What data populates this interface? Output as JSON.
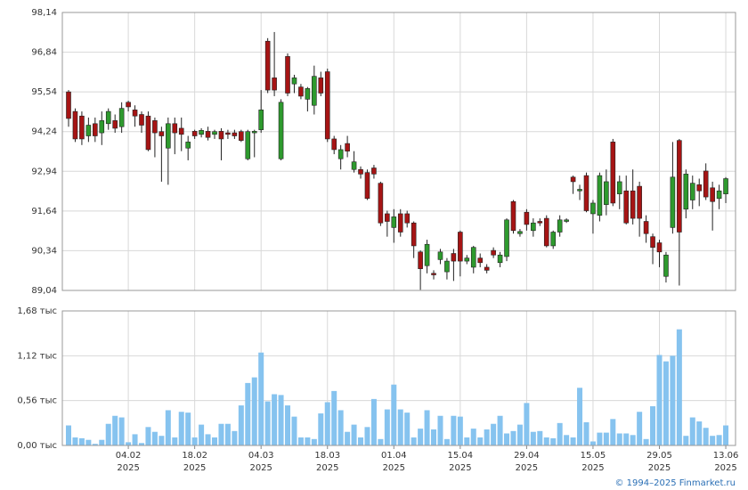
{
  "chart_data": [
    {
      "type": "candlestick",
      "ylim": [
        89.04,
        98.14
      ],
      "yticks": [
        {
          "value": 89.04,
          "label": "89,04"
        },
        {
          "value": 90.34,
          "label": "90,34"
        },
        {
          "value": 91.64,
          "label": "91,64"
        },
        {
          "value": 92.94,
          "label": "92,94"
        },
        {
          "value": 94.24,
          "label": "94,24"
        },
        {
          "value": 95.54,
          "label": "95,54"
        },
        {
          "value": 96.84,
          "label": "96,84"
        },
        {
          "value": 98.14,
          "label": "98,14"
        }
      ],
      "grid": true,
      "up_color": "#2e9a2e",
      "down_color": "#a61414",
      "open": [
        95.54,
        94.9,
        94.75,
        94.1,
        94.5,
        94.2,
        94.5,
        94.6,
        94.4,
        95.2,
        94.95,
        94.8,
        94.75,
        94.6,
        94.24,
        93.7,
        94.5,
        94.35,
        93.7,
        94.25,
        94.15,
        94.25,
        94.15,
        94.25,
        94.2,
        94.2,
        94.24,
        93.35,
        94.2,
        94.3,
        97.2,
        96.0,
        93.35,
        96.7,
        95.8,
        95.7,
        95.3,
        95.1,
        96.0,
        96.2,
        94.0,
        93.35,
        93.85,
        93.0,
        93.0,
        92.9,
        93.05,
        92.55,
        91.55,
        91.1,
        91.55,
        91.55,
        91.25,
        90.3,
        89.85,
        89.6,
        90.05,
        89.65,
        90.25,
        90.95,
        90.0,
        89.8,
        90.1,
        89.8,
        90.35,
        89.95,
        90.15,
        91.95,
        90.9,
        91.6,
        91.0,
        91.3,
        91.4,
        90.5,
        90.95,
        91.3,
        92.75,
        92.3,
        92.8,
        91.55,
        91.5,
        91.85,
        93.9,
        92.2,
        92.3,
        92.3,
        92.45,
        91.3,
        90.8,
        90.6,
        89.5,
        91.1,
        93.95,
        91.7,
        92.0,
        92.5,
        92.95,
        92.4,
        92.05,
        92.2
      ],
      "high": [
        95.6,
        95.0,
        94.9,
        94.7,
        94.7,
        94.9,
        95.0,
        94.8,
        95.2,
        95.25,
        95.1,
        94.9,
        94.9,
        94.7,
        94.4,
        94.7,
        94.7,
        94.7,
        94.1,
        94.3,
        94.35,
        94.4,
        94.3,
        94.35,
        94.3,
        94.3,
        94.3,
        94.3,
        94.3,
        95.6,
        97.3,
        97.5,
        95.3,
        96.8,
        96.1,
        95.8,
        95.7,
        96.4,
        96.2,
        96.3,
        94.1,
        93.8,
        94.1,
        93.6,
        93.1,
        93.0,
        93.15,
        92.6,
        91.65,
        91.7,
        91.7,
        91.65,
        91.3,
        90.35,
        90.7,
        89.7,
        90.4,
        90.1,
        90.4,
        91.0,
        90.2,
        90.5,
        90.25,
        89.9,
        90.45,
        90.3,
        91.4,
        92.0,
        91.05,
        91.7,
        91.4,
        91.4,
        91.5,
        91.0,
        91.5,
        91.4,
        92.8,
        92.5,
        92.9,
        92.0,
        92.9,
        93.0,
        94.0,
        92.8,
        92.8,
        93.0,
        92.6,
        91.5,
        90.9,
        90.7,
        90.3,
        93.9,
        94.0,
        93.0,
        92.8,
        92.7,
        93.2,
        92.6,
        92.5,
        92.75
      ],
      "low": [
        94.4,
        93.9,
        93.8,
        93.9,
        93.9,
        93.8,
        94.3,
        94.2,
        94.2,
        94.9,
        94.4,
        94.2,
        93.6,
        93.4,
        92.6,
        92.5,
        93.5,
        93.6,
        93.3,
        94.0,
        94.05,
        93.95,
        94.0,
        93.3,
        94.0,
        94.0,
        93.9,
        93.3,
        93.4,
        94.2,
        95.5,
        95.4,
        93.3,
        95.4,
        95.5,
        95.3,
        94.9,
        94.8,
        95.4,
        93.9,
        93.5,
        93.0,
        93.4,
        92.9,
        92.7,
        92.0,
        92.7,
        91.15,
        90.8,
        90.6,
        90.8,
        91.1,
        90.1,
        89.06,
        89.6,
        89.4,
        89.9,
        89.4,
        89.35,
        89.5,
        89.9,
        89.6,
        89.8,
        89.6,
        90.1,
        89.8,
        90.0,
        90.9,
        90.8,
        91.0,
        90.8,
        91.15,
        90.45,
        90.4,
        90.8,
        91.25,
        92.2,
        92.0,
        91.6,
        90.9,
        91.3,
        91.5,
        91.8,
        91.7,
        91.2,
        91.2,
        90.8,
        90.6,
        89.9,
        89.8,
        89.3,
        90.9,
        89.2,
        91.4,
        91.7,
        91.8,
        92.0,
        91.0,
        91.7,
        91.9
      ],
      "close": [
        94.67,
        94.0,
        94.0,
        94.45,
        94.1,
        94.6,
        94.9,
        94.35,
        95.0,
        95.05,
        94.75,
        94.45,
        93.65,
        94.2,
        94.1,
        94.5,
        94.2,
        94.15,
        93.9,
        94.1,
        94.28,
        94.05,
        94.24,
        94.0,
        94.15,
        94.1,
        93.95,
        94.24,
        94.25,
        94.95,
        95.6,
        95.6,
        95.2,
        95.5,
        96.0,
        95.4,
        95.65,
        96.05,
        95.5,
        94.0,
        93.65,
        93.65,
        93.6,
        93.25,
        92.85,
        92.05,
        92.85,
        91.25,
        91.3,
        91.45,
        90.95,
        91.25,
        90.5,
        89.75,
        90.55,
        89.55,
        90.3,
        90.0,
        90.0,
        90.0,
        90.1,
        90.45,
        89.95,
        89.7,
        90.2,
        90.2,
        91.35,
        91.0,
        90.97,
        91.2,
        91.25,
        91.25,
        90.5,
        90.95,
        91.35,
        91.35,
        92.6,
        92.35,
        91.65,
        91.9,
        92.8,
        92.6,
        91.9,
        92.6,
        91.25,
        91.4,
        91.4,
        90.9,
        90.45,
        90.3,
        90.2,
        92.75,
        90.95,
        92.85,
        92.55,
        92.3,
        92.1,
        91.95,
        92.3,
        92.7
      ]
    },
    {
      "type": "bar",
      "ylim": [
        0,
        1.68
      ],
      "yticks": [
        {
          "value": 0,
          "label": "0,00 тыс"
        },
        {
          "value": 0.56,
          "label": "0,56 тыс"
        },
        {
          "value": 1.12,
          "label": "1,12 тыс"
        },
        {
          "value": 1.68,
          "label": "1,68 тыс"
        }
      ],
      "grid": true,
      "color": "#86c3ef",
      "values": [
        0.25,
        0.1,
        0.09,
        0.07,
        0.02,
        0.07,
        0.27,
        0.37,
        0.35,
        0.04,
        0.14,
        0.03,
        0.23,
        0.17,
        0.12,
        0.44,
        0.1,
        0.42,
        0.41,
        0.1,
        0.26,
        0.14,
        0.1,
        0.27,
        0.27,
        0.18,
        0.5,
        0.78,
        0.85,
        1.16,
        0.55,
        0.64,
        0.63,
        0.5,
        0.36,
        0.1,
        0.1,
        0.08,
        0.4,
        0.54,
        0.68,
        0.44,
        0.17,
        0.26,
        0.1,
        0.23,
        0.58,
        0.08,
        0.45,
        0.76,
        0.45,
        0.41,
        0.1,
        0.21,
        0.44,
        0.2,
        0.37,
        0.08,
        0.37,
        0.36,
        0.1,
        0.21,
        0.1,
        0.2,
        0.27,
        0.37,
        0.15,
        0.18,
        0.26,
        0.53,
        0.17,
        0.18,
        0.1,
        0.09,
        0.28,
        0.13,
        0.1,
        0.72,
        0.29,
        0.05,
        0.16,
        0.16,
        0.33,
        0.15,
        0.15,
        0.13,
        0.42,
        0.08,
        0.49,
        1.13,
        1.05,
        1.12,
        1.45,
        0.12,
        0.35,
        0.3,
        0.22,
        0.12,
        0.13,
        0.25
      ],
      "xticks": [
        {
          "day": "04.02",
          "year": "2025"
        },
        {
          "day": "18.02",
          "year": "2025"
        },
        {
          "day": "04.03",
          "year": "2025"
        },
        {
          "day": "18.03",
          "year": "2025"
        },
        {
          "day": "01.04",
          "year": "2025"
        },
        {
          "day": "15.04",
          "year": "2025"
        },
        {
          "day": "29.04",
          "year": "2025"
        },
        {
          "day": "15.05",
          "year": "2025"
        },
        {
          "day": "29.05",
          "year": "2025"
        },
        {
          "day": "13.06",
          "year": "2025"
        }
      ]
    }
  ],
  "footer": "© 1994–2025 Finmarket.ru"
}
